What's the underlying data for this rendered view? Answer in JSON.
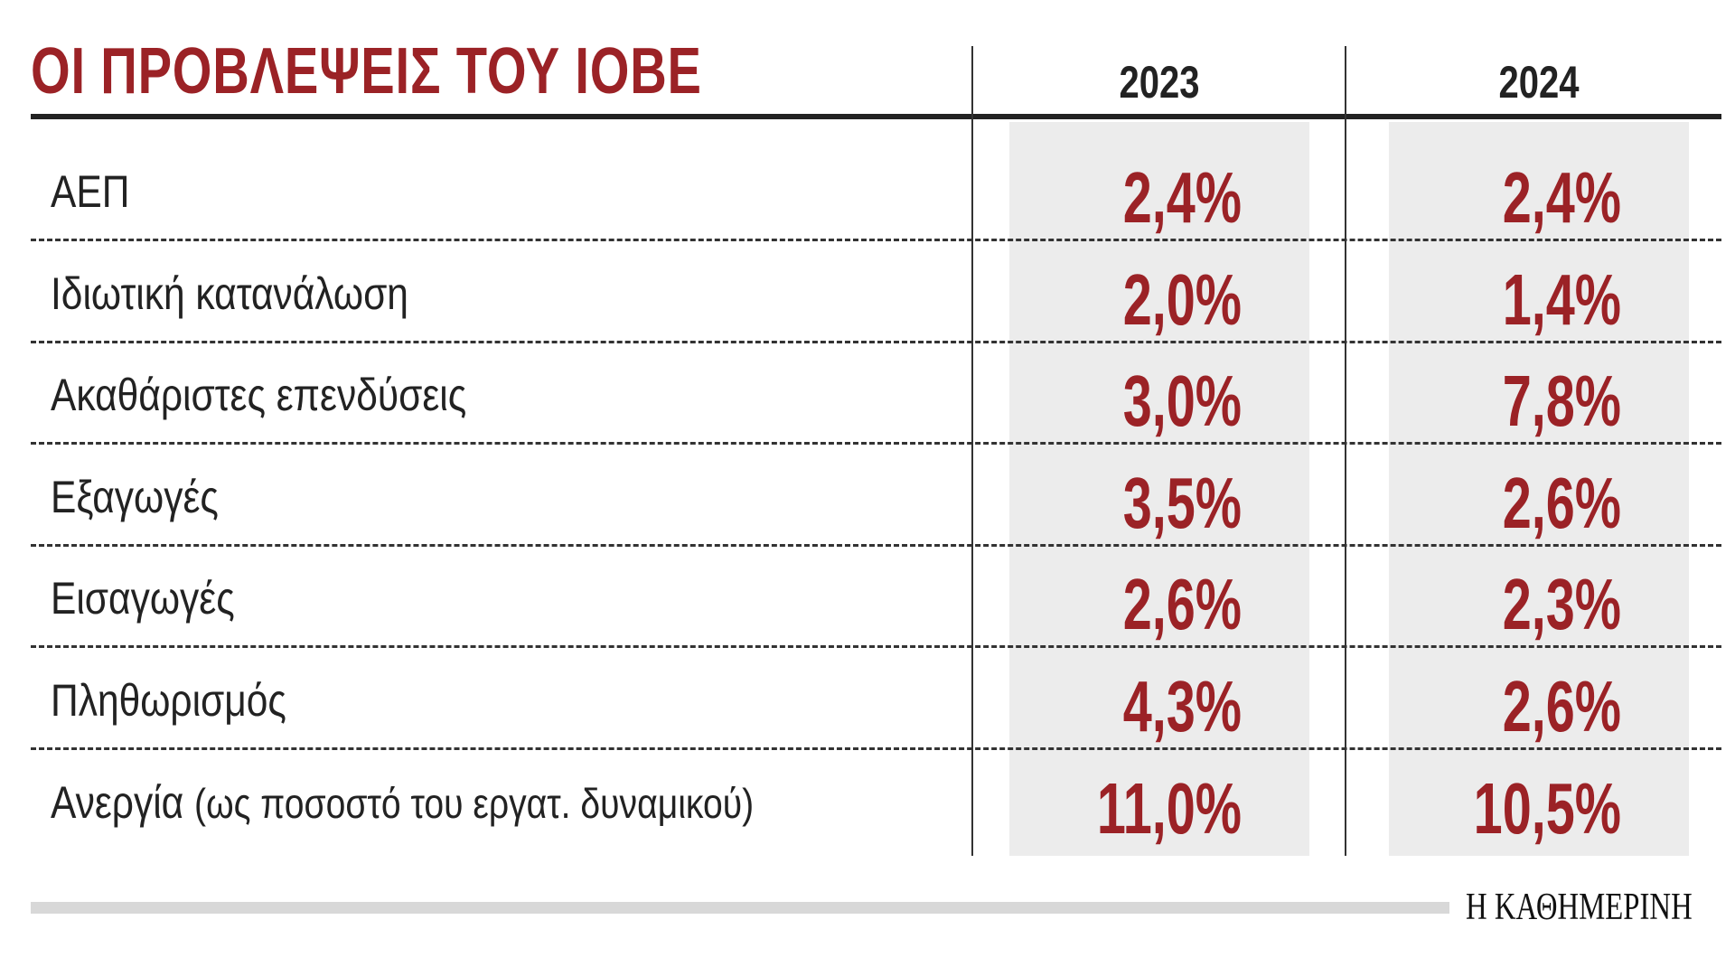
{
  "title": "ΟΙ ΠΡΟΒΛΕΨΕΙΣ ΤΟΥ ΙΟΒΕ",
  "columns": [
    "2023",
    "2024"
  ],
  "rows": [
    {
      "label": "ΑΕΠ",
      "note": "",
      "v2023": "2,4%",
      "v2024": "2,4%"
    },
    {
      "label": "Ιδιωτική κατανάλωση",
      "note": "",
      "v2023": "2,0%",
      "v2024": "1,4%"
    },
    {
      "label": "Ακαθάριστες επενδύσεις",
      "note": "",
      "v2023": "3,0%",
      "v2024": "7,8%"
    },
    {
      "label": "Εξαγωγές",
      "note": "",
      "v2023": "3,5%",
      "v2024": "2,6%"
    },
    {
      "label": "Εισαγωγές",
      "note": "",
      "v2023": "2,6%",
      "v2024": "2,3%"
    },
    {
      "label": "Πληθωρισμός",
      "note": "",
      "v2023": "4,3%",
      "v2024": "2,6%"
    },
    {
      "label": "Ανεργία",
      "note": "(ως ποσοστό του εργατ. δυναμικού)",
      "v2023": "11,0%",
      "v2024": "10,5%"
    }
  ],
  "source_logo": "Η ΚΑΘΗΜΕΡΙΝΗ",
  "colors": {
    "accent": "#9b2226",
    "column_bg": "#ececec",
    "text": "#222222"
  }
}
